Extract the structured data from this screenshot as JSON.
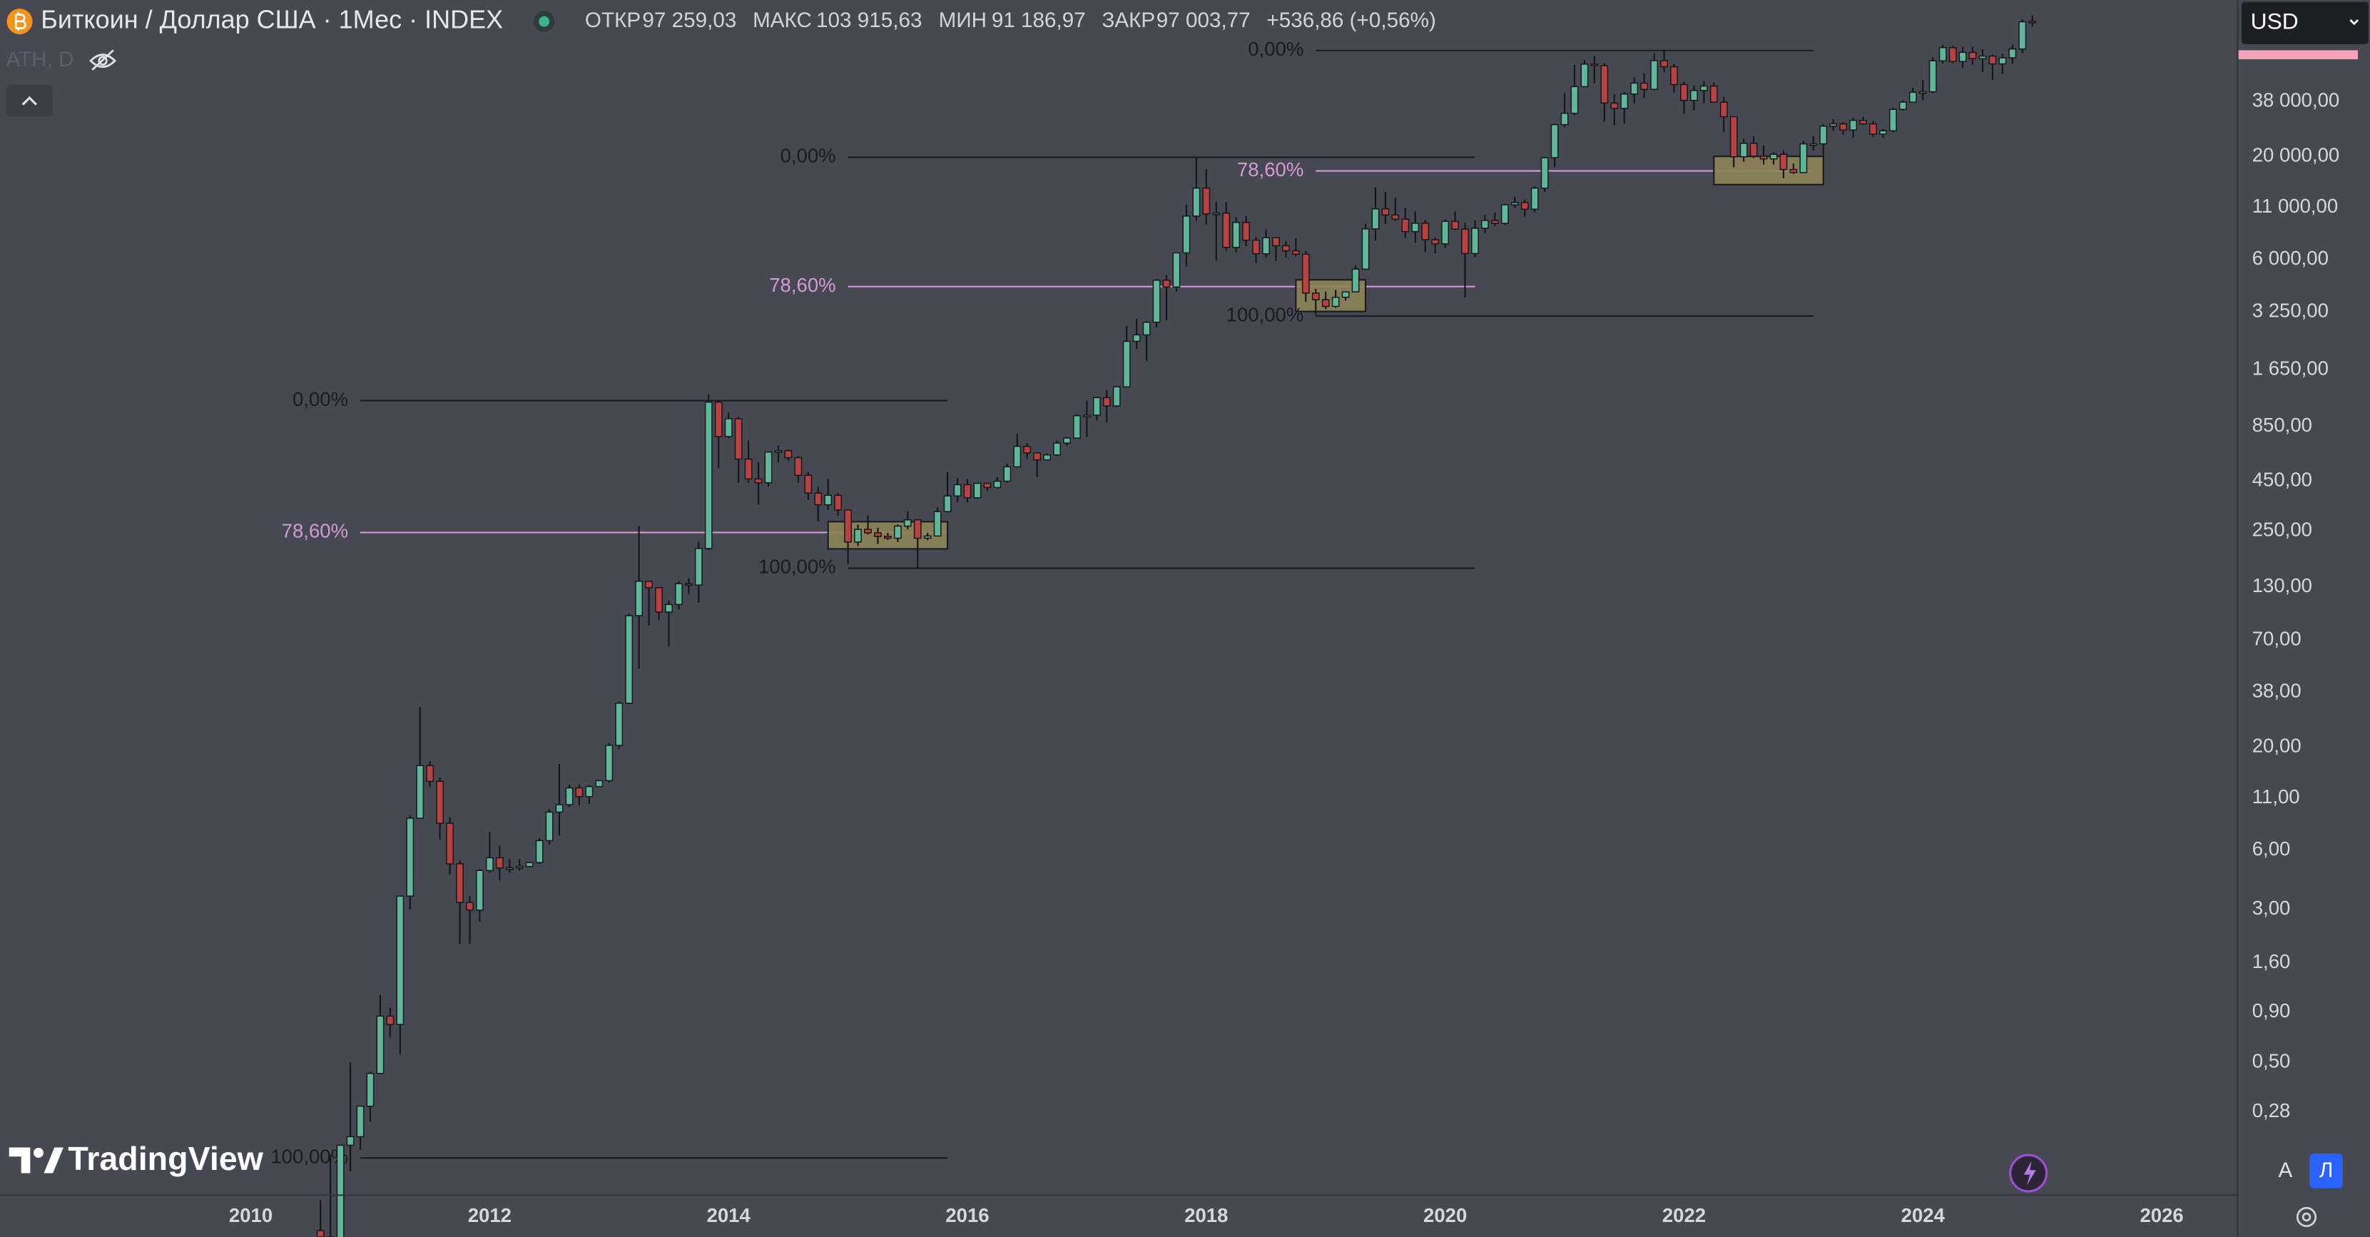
{
  "header": {
    "symbol_title": "Биткоин / Доллар США · 1Мес · INDEX",
    "ohlc": [
      {
        "label": "ОТКР",
        "value": "97 259,03"
      },
      {
        "label": "МАКС",
        "value": "103 915,63"
      },
      {
        "label": "МИН",
        "value": "91 186,97"
      },
      {
        "label": "ЗАКР",
        "value": "97 003,77"
      }
    ],
    "change": "+536,86 (+0,56%)",
    "indicator": "ATH, D",
    "currency": "USD",
    "brand": "TradingView",
    "scale_buttons": [
      "A",
      "Л"
    ]
  },
  "chart_data": {
    "type": "candlestick",
    "log_scale": true,
    "up_color": "#5fb79a",
    "down_color": "#b84141",
    "wick_color": "#161618",
    "x": [
      "2010-08",
      "2010-09",
      "2010-10",
      "2010-11",
      "2010-12",
      "2011-01",
      "2011-02",
      "2011-03",
      "2011-04",
      "2011-05",
      "2011-06",
      "2011-07",
      "2011-08",
      "2011-09",
      "2011-10",
      "2011-11",
      "2011-12",
      "2012-01",
      "2012-02",
      "2012-03",
      "2012-04",
      "2012-05",
      "2012-06",
      "2012-07",
      "2012-08",
      "2012-09",
      "2012-10",
      "2012-11",
      "2012-12",
      "2013-01",
      "2013-02",
      "2013-03",
      "2013-04",
      "2013-05",
      "2013-06",
      "2013-07",
      "2013-08",
      "2013-09",
      "2013-10",
      "2013-11",
      "2013-12",
      "2014-01",
      "2014-02",
      "2014-03",
      "2014-04",
      "2014-05",
      "2014-06",
      "2014-07",
      "2014-08",
      "2014-09",
      "2014-10",
      "2014-11",
      "2014-12",
      "2015-01",
      "2015-02",
      "2015-03",
      "2015-04",
      "2015-05",
      "2015-06",
      "2015-07",
      "2015-08",
      "2015-09",
      "2015-10",
      "2015-11",
      "2015-12",
      "2016-01",
      "2016-02",
      "2016-03",
      "2016-04",
      "2016-05",
      "2016-06",
      "2016-07",
      "2016-08",
      "2016-09",
      "2016-10",
      "2016-11",
      "2016-12",
      "2017-01",
      "2017-02",
      "2017-03",
      "2017-04",
      "2017-05",
      "2017-06",
      "2017-07",
      "2017-08",
      "2017-09",
      "2017-10",
      "2017-11",
      "2017-12",
      "2018-01",
      "2018-02",
      "2018-03",
      "2018-04",
      "2018-05",
      "2018-06",
      "2018-07",
      "2018-08",
      "2018-09",
      "2018-10",
      "2018-11",
      "2018-12",
      "2019-01",
      "2019-02",
      "2019-03",
      "2019-04",
      "2019-05",
      "2019-06",
      "2019-07",
      "2019-08",
      "2019-09",
      "2019-10",
      "2019-11",
      "2019-12",
      "2020-01",
      "2020-02",
      "2020-03",
      "2020-04",
      "2020-05",
      "2020-06",
      "2020-07",
      "2020-08",
      "2020-09",
      "2020-10",
      "2020-11",
      "2020-12",
      "2021-01",
      "2021-02",
      "2021-03",
      "2021-04",
      "2021-05",
      "2021-06",
      "2021-07",
      "2021-08",
      "2021-09",
      "2021-10",
      "2021-11",
      "2021-12",
      "2022-01",
      "2022-02",
      "2022-03",
      "2022-04",
      "2022-05",
      "2022-06",
      "2022-07",
      "2022-08",
      "2022-09",
      "2022-10",
      "2022-11",
      "2022-12",
      "2023-01",
      "2023-02",
      "2023-03",
      "2023-04",
      "2023-05",
      "2023-06",
      "2023-07",
      "2023-08",
      "2023-09",
      "2023-10",
      "2023-11",
      "2023-12",
      "2024-01",
      "2024-02",
      "2024-03",
      "2024-04",
      "2024-05",
      "2024-06",
      "2024-07",
      "2024-08",
      "2024-09",
      "2024-10",
      "2024-11",
      "2024-12"
    ],
    "open": [
      0.07,
      0.065,
      0.062,
      0.19,
      0.21,
      0.3,
      0.44,
      0.86,
      0.78,
      3.5,
      8.7,
      16.1,
      13.4,
      8.2,
      5.1,
      3.25,
      2.97,
      4.72,
      5.48,
      4.86,
      4.87,
      4.95,
      5.18,
      6.7,
      9.35,
      10.2,
      12.4,
      11.2,
      12.6,
      13.5,
      20.4,
      33.4,
      93,
      139,
      129,
      97,
      106,
      135,
      133,
      204,
      1129,
      755,
      930,
      580,
      460,
      440,
      630,
      640,
      590,
      480,
      390,
      340,
      380,
      320,
      220,
      255,
      245,
      235,
      230,
      265,
      285,
      230,
      236,
      314,
      377,
      430,
      369,
      437,
      416,
      448,
      530,
      673,
      624,
      575,
      609,
      700,
      742,
      963,
      970,
      1190,
      1080,
      1350,
      2300,
      2480,
      2875,
      4700,
      4340,
      6470,
      9950,
      13800,
      10200,
      10300,
      6900,
      9240,
      7500,
      6400,
      7730,
      7030,
      6630,
      6370,
      4040,
      3740,
      3460,
      3850,
      4100,
      5350,
      8560,
      10820,
      10080,
      9600,
      8300,
      9150,
      7550,
      7190,
      9350,
      8540,
      6420,
      8630,
      9450,
      9140,
      11350,
      11650,
      10780,
      13800,
      19700,
      28990,
      33100,
      45200,
      58800,
      57700,
      37300,
      35040,
      41460,
      47100,
      43800,
      61300,
      57000,
      46300,
      38500,
      43200,
      45500,
      37700,
      31800,
      19900,
      23300,
      20050,
      19420,
      20500,
      17150,
      16550,
      23140,
      23150,
      28480,
      29250,
      27220,
      30480,
      29230,
      25940,
      26970,
      34660,
      37720,
      42280,
      42580,
      61130,
      71330,
      60640,
      67490,
      62700,
      64620,
      58970,
      63330,
      70200,
      97259.03
    ],
    "high": [
      0.1,
      0.17,
      0.19,
      0.5,
      0.3,
      0.45,
      1.1,
      0.95,
      3.5,
      9.0,
      32,
      17,
      14,
      8.8,
      5.3,
      3.5,
      4.8,
      7.4,
      6.3,
      5.4,
      5.4,
      5.2,
      6.9,
      9.7,
      16.4,
      12.9,
      12.9,
      12.8,
      13.6,
      21,
      34,
      95,
      266,
      140,
      129,
      111,
      139,
      144,
      220,
      1240,
      1160,
      1000,
      950,
      720,
      560,
      630,
      680,
      650,
      600,
      500,
      420,
      460,
      390,
      320,
      270,
      300,
      260,
      245,
      270,
      315,
      285,
      245,
      330,
      500,
      465,
      460,
      440,
      440,
      470,
      550,
      780,
      700,
      630,
      620,
      720,
      750,
      980,
      1150,
      1200,
      1300,
      1350,
      2760,
      3000,
      2920,
      4750,
      4980,
      6470,
      11400,
      19800,
      17200,
      11800,
      11700,
      9800,
      10000,
      7800,
      8500,
      7760,
      7410,
      7680,
      6600,
      4250,
      4110,
      4200,
      4120,
      5600,
      9100,
      13900,
      13200,
      12300,
      10950,
      10500,
      9500,
      7750,
      9580,
      10500,
      9200,
      9460,
      10070,
      10380,
      11450,
      12480,
      12070,
      14100,
      19900,
      29300,
      41950,
      58350,
      61800,
      64900,
      59600,
      41300,
      42300,
      50500,
      52900,
      67000,
      69000,
      59100,
      47900,
      45800,
      48200,
      47400,
      40000,
      31900,
      24600,
      25200,
      22700,
      21000,
      21450,
      18400,
      23950,
      25250,
      29200,
      31000,
      29800,
      31400,
      31800,
      30200,
      27500,
      35200,
      38400,
      44700,
      48900,
      63900,
      73800,
      72700,
      71950,
      71950,
      70000,
      65600,
      66500,
      73600,
      99600,
      103915.63
    ],
    "low": [
      0.06,
      0.06,
      0.06,
      0.14,
      0.18,
      0.25,
      0.44,
      0.67,
      0.55,
      3.0,
      8.7,
      12.5,
      6.8,
      4.5,
      2.0,
      2.0,
      2.6,
      4.6,
      4.2,
      4.6,
      4.7,
      4.9,
      5.1,
      6.4,
      7.1,
      9.9,
      10.1,
      10.3,
      12.6,
      13.2,
      19.5,
      33,
      50,
      83,
      88,
      65,
      100,
      120,
      108,
      200,
      522,
      740,
      440,
      440,
      340,
      420,
      560,
      570,
      440,
      360,
      280,
      320,
      300,
      170,
      210,
      240,
      215,
      225,
      220,
      255,
      160,
      225,
      236,
      310,
      350,
      350,
      365,
      400,
      410,
      440,
      525,
      580,
      470,
      570,
      600,
      680,
      740,
      750,
      910,
      890,
      1070,
      1340,
      2100,
      1830,
      2700,
      2950,
      4100,
      5500,
      9400,
      9000,
      5900,
      6600,
      6500,
      7000,
      5750,
      6100,
      5880,
      6100,
      6200,
      3650,
      3120,
      3350,
      3400,
      3700,
      4080,
      5330,
      7500,
      9050,
      9400,
      7700,
      7300,
      6500,
      6430,
      6850,
      8450,
      3850,
      6150,
      8120,
      8830,
      8970,
      10950,
      9880,
      10400,
      13200,
      17600,
      28100,
      32300,
      45000,
      47000,
      30000,
      28800,
      29300,
      37300,
      39600,
      43300,
      53300,
      42000,
      32900,
      34300,
      37200,
      37700,
      26700,
      17600,
      18800,
      19600,
      18200,
      18200,
      15480,
      16300,
      16500,
      21400,
      19550,
      26950,
      25800,
      24800,
      28900,
      25150,
      24900,
      26560,
      34100,
      37600,
      38500,
      41900,
      59200,
      59600,
      56550,
      58400,
      53500,
      49000,
      52600,
      58900,
      66800,
      91186.97
    ],
    "close": [
      0.065,
      0.062,
      0.19,
      0.21,
      0.3,
      0.44,
      0.86,
      0.78,
      3.5,
      8.7,
      16.1,
      13.4,
      8.2,
      5.1,
      3.25,
      2.97,
      4.72,
      5.48,
      4.86,
      4.87,
      4.95,
      5.18,
      6.7,
      9.35,
      10.2,
      12.4,
      11.2,
      12.6,
      13.5,
      20.4,
      33.4,
      93,
      139,
      129,
      97,
      106,
      135,
      133,
      204,
      1129,
      755,
      930,
      580,
      460,
      440,
      630,
      640,
      590,
      480,
      390,
      340,
      380,
      320,
      220,
      255,
      245,
      235,
      230,
      265,
      285,
      230,
      236,
      314,
      377,
      430,
      369,
      437,
      416,
      448,
      530,
      673,
      624,
      575,
      609,
      700,
      742,
      963,
      970,
      1190,
      1080,
      1350,
      2300,
      2480,
      2875,
      4700,
      4340,
      6470,
      9950,
      13800,
      10200,
      10300,
      6900,
      9240,
      7500,
      6400,
      7730,
      7030,
      6630,
      6370,
      4040,
      3740,
      3460,
      3850,
      4100,
      5350,
      8560,
      10820,
      10080,
      9600,
      8300,
      9150,
      7550,
      7190,
      9350,
      8540,
      6420,
      8630,
      9450,
      9140,
      11350,
      11650,
      10780,
      13800,
      19700,
      28990,
      33100,
      45200,
      58800,
      57700,
      37300,
      35040,
      41460,
      47100,
      43800,
      61300,
      57000,
      46300,
      38500,
      43200,
      45500,
      37700,
      31800,
      19900,
      23300,
      20050,
      19420,
      20500,
      17150,
      16550,
      23140,
      23150,
      28480,
      29250,
      27220,
      30480,
      29230,
      25940,
      26970,
      34660,
      37720,
      42280,
      42580,
      61130,
      71330,
      60640,
      67490,
      62700,
      64620,
      58970,
      63330,
      70200,
      96466.91,
      97003.77
    ],
    "xlim": [
      2007.9,
      2026.63
    ],
    "xticks": [
      2010,
      2012,
      2014,
      2016,
      2018,
      2020,
      2022,
      2024,
      2026
    ],
    "ylim": [
      0.107,
      124000
    ],
    "yticks": [
      {
        "value": 38000,
        "label": "38 000,00"
      },
      {
        "value": 20000,
        "label": "20 000,00"
      },
      {
        "value": 11000,
        "label": "11 000,00"
      },
      {
        "value": 6000,
        "label": "6 000,00"
      },
      {
        "value": 3250,
        "label": "3 250,00"
      },
      {
        "value": 1650,
        "label": "1 650,00"
      },
      {
        "value": 850,
        "label": "850,00"
      },
      {
        "value": 450,
        "label": "450,00"
      },
      {
        "value": 250,
        "label": "250,00"
      },
      {
        "value": 130,
        "label": "130,00"
      },
      {
        "value": 70,
        "label": "70,00"
      },
      {
        "value": 38,
        "label": "38,00"
      },
      {
        "value": 20,
        "label": "20,00"
      },
      {
        "value": 11,
        "label": "11,00"
      },
      {
        "value": 6,
        "label": "6,00"
      },
      {
        "value": 3,
        "label": "3,00"
      },
      {
        "value": 1.6,
        "label": "1,60"
      },
      {
        "value": 0.9,
        "label": "0,90"
      },
      {
        "value": 0.5,
        "label": "0,50"
      },
      {
        "value": 0.28,
        "label": "0,28"
      }
    ],
    "fibs": [
      {
        "start": "2010-12",
        "end": "2015-11",
        "levels": [
          {
            "label": "0,00%",
            "price": 1150,
            "color": "#1b1b1f"
          },
          {
            "label": "78,60%",
            "price": 246,
            "color": "#d39ad6"
          },
          {
            "label": "100,00%",
            "price": 0.164,
            "color": "#1b1b1f"
          }
        ],
        "box": {
          "start": "2014-11",
          "end": "2015-11",
          "low": 203,
          "high": 279,
          "color": "#8d8456"
        }
      },
      {
        "start": "2015-01",
        "end": "2020-04",
        "levels": [
          {
            "label": "0,00%",
            "price": 19800,
            "color": "#1b1b1f"
          },
          {
            "label": "78,60%",
            "price": 4365,
            "color": "#d39ad6"
          },
          {
            "label": "100,00%",
            "price": 162,
            "color": "#1b1b1f"
          }
        ],
        "box": {
          "start": "2018-10",
          "end": "2019-05",
          "low": 3260,
          "high": 4720,
          "color": "#8d8456"
        }
      },
      {
        "start": "2018-12",
        "end": "2023-02",
        "levels": [
          {
            "label": "0,00%",
            "price": 69000,
            "color": "#1b1b1f"
          },
          {
            "label": "78,60%",
            "price": 16870,
            "color": "#d39ad6"
          },
          {
            "label": "100,00%",
            "price": 3090,
            "color": "#1b1b1f"
          }
        ],
        "box": {
          "start": "2022-04",
          "end": "2023-03",
          "low": 14380,
          "high": 20000,
          "color": "#8d8456"
        }
      }
    ]
  }
}
